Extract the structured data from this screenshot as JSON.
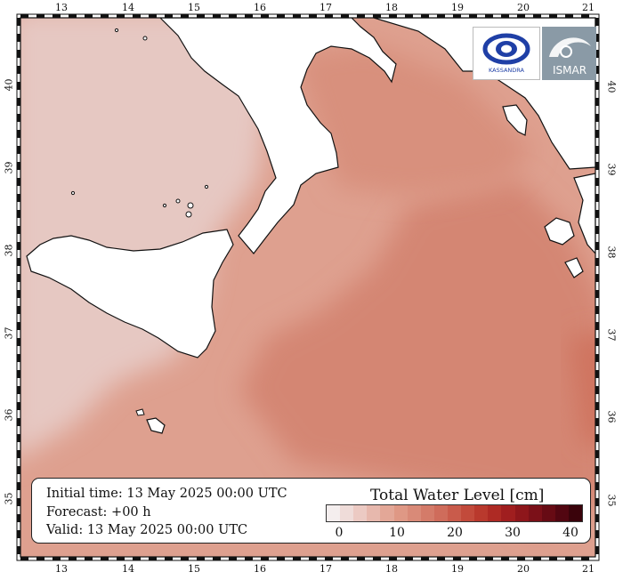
{
  "map": {
    "lon_labels": [
      "13",
      "14",
      "15",
      "16",
      "17",
      "18",
      "19",
      "20",
      "21"
    ],
    "lat_labels": [
      "40",
      "39",
      "38",
      "37",
      "36",
      "35"
    ],
    "sea_color": "#dea08f",
    "high_color": "#d48673",
    "coast_color": "#111111",
    "land_color": "#ffffff"
  },
  "info": {
    "initial": "Initial time: 13 May 2025 00:00 UTC",
    "forecast": "Forecast: +00 h",
    "valid": "Valid: 13 May 2025 00:00 UTC"
  },
  "legend": {
    "title": "Total Water Level [cm]",
    "ticks": [
      "0",
      "10",
      "20",
      "30",
      "40"
    ],
    "colors": [
      "#f4eeee",
      "#efdcd9",
      "#eccac3",
      "#e7b8ad",
      "#e3a797",
      "#df9885",
      "#d98a78",
      "#d47b69",
      "#cf6c5b",
      "#c95b4b",
      "#c24a3b",
      "#b9392d",
      "#ae2a24",
      "#a01e1f",
      "#8e161b",
      "#7b1018",
      "#670b14",
      "#520611",
      "#3a030b"
    ]
  },
  "logos": {
    "kassandra_text": "KASSANDRA",
    "ismar_text": "ISMAR"
  }
}
